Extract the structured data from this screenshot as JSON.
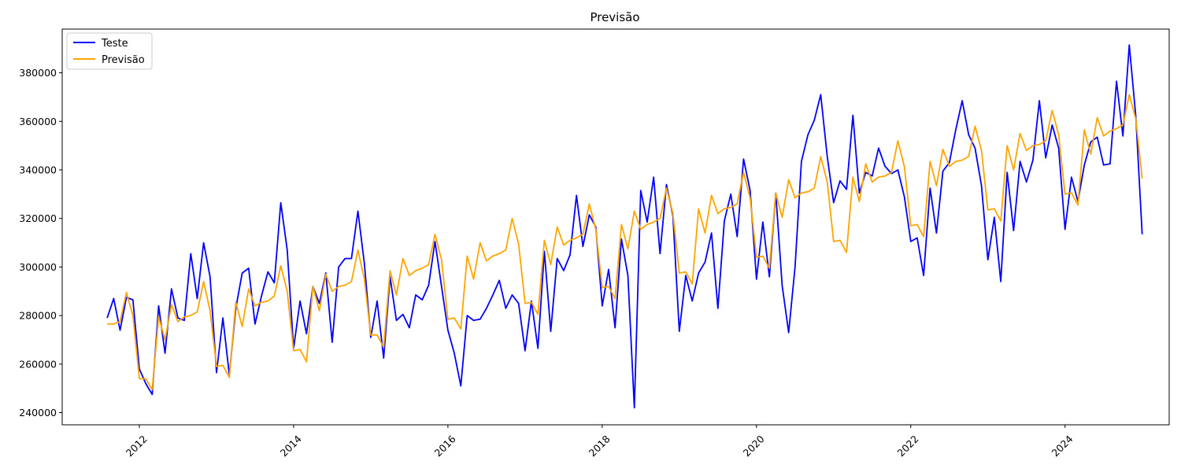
{
  "chart_data": {
    "type": "line",
    "title": "Previsão",
    "xlabel": "",
    "ylabel": "",
    "xlim": [
      2011.0,
      2025.35
    ],
    "ylim": [
      235000,
      398000
    ],
    "x_ticks": [
      2012,
      2014,
      2016,
      2018,
      2020,
      2022,
      2024
    ],
    "x_tick_labels": [
      "2012",
      "2014",
      "2016",
      "2018",
      "2020",
      "2022",
      "2024"
    ],
    "y_ticks": [
      240000,
      260000,
      280000,
      300000,
      320000,
      340000,
      360000,
      380000
    ],
    "y_tick_labels": [
      "240000",
      "260000",
      "280000",
      "300000",
      "320000",
      "340000",
      "360000",
      "380000"
    ],
    "grid": false,
    "legend": {
      "position": "top-left",
      "entries": [
        "Teste",
        "Previsão"
      ]
    },
    "x": [
      2011.583,
      2011.667,
      2011.75,
      2011.833,
      2011.917,
      2012.0,
      2012.083,
      2012.167,
      2012.25,
      2012.333,
      2012.417,
      2012.5,
      2012.583,
      2012.667,
      2012.75,
      2012.833,
      2012.917,
      2013.0,
      2013.083,
      2013.167,
      2013.25,
      2013.333,
      2013.417,
      2013.5,
      2013.583,
      2013.667,
      2013.75,
      2013.833,
      2013.917,
      2014.0,
      2014.083,
      2014.167,
      2014.25,
      2014.333,
      2014.417,
      2014.5,
      2014.583,
      2014.667,
      2014.75,
      2014.833,
      2014.917,
      2015.0,
      2015.083,
      2015.167,
      2015.25,
      2015.333,
      2015.417,
      2015.5,
      2015.583,
      2015.667,
      2015.75,
      2015.833,
      2015.917,
      2016.0,
      2016.083,
      2016.167,
      2016.25,
      2016.333,
      2016.417,
      2016.5,
      2016.583,
      2016.667,
      2016.75,
      2016.833,
      2016.917,
      2017.0,
      2017.083,
      2017.167,
      2017.25,
      2017.333,
      2017.417,
      2017.5,
      2017.583,
      2017.667,
      2017.75,
      2017.833,
      2017.917,
      2018.0,
      2018.083,
      2018.167,
      2018.25,
      2018.333,
      2018.417,
      2018.5,
      2018.583,
      2018.667,
      2018.75,
      2018.833,
      2018.917,
      2019.0,
      2019.083,
      2019.167,
      2019.25,
      2019.333,
      2019.417,
      2019.5,
      2019.583,
      2019.667,
      2019.75,
      2019.833,
      2019.917,
      2020.0,
      2020.083,
      2020.167,
      2020.25,
      2020.333,
      2020.417,
      2020.5,
      2020.583,
      2020.667,
      2020.75,
      2020.833,
      2020.917,
      2021.0,
      2021.083,
      2021.167,
      2021.25,
      2021.333,
      2021.417,
      2021.5,
      2021.583,
      2021.667,
      2021.75,
      2021.833,
      2021.917,
      2022.0,
      2022.083,
      2022.167,
      2022.25,
      2022.333,
      2022.417,
      2022.5,
      2022.583,
      2022.667,
      2022.75,
      2022.833,
      2022.917,
      2023.0,
      2023.083,
      2023.167,
      2023.25,
      2023.333,
      2023.417,
      2023.5,
      2023.583,
      2023.667,
      2023.75,
      2023.833,
      2023.917,
      2024.0,
      2024.083,
      2024.167,
      2024.25,
      2024.333,
      2024.417,
      2024.5,
      2024.583,
      2024.667,
      2024.75,
      2024.833,
      2024.917,
      2025.0
    ],
    "series": [
      {
        "name": "Teste",
        "color": "#0000ff",
        "values": [
          279000,
          287000,
          274000,
          287500,
          286500,
          258000,
          252000,
          247500,
          284000,
          264500,
          291000,
          279000,
          278000,
          305500,
          287000,
          310000,
          296000,
          256500,
          279000,
          255500,
          283000,
          297500,
          299500,
          276500,
          288000,
          298000,
          293500,
          326500,
          307000,
          266500,
          286000,
          272500,
          292000,
          285000,
          297500,
          269000,
          300000,
          303500,
          303500,
          323000,
          301500,
          271000,
          286000,
          262500,
          296000,
          278000,
          280500,
          275000,
          288500,
          286500,
          292500,
          310500,
          292000,
          274000,
          264500,
          251000,
          280000,
          278000,
          278500,
          283000,
          288500,
          294500,
          283000,
          288500,
          285000,
          265500,
          286000,
          266500,
          306500,
          273500,
          303500,
          298500,
          305000,
          329500,
          308500,
          321500,
          316500,
          284000,
          299000,
          275000,
          311500,
          296500,
          242000,
          331500,
          318500,
          337000,
          305500,
          334000,
          321000,
          273500,
          296500,
          286000,
          297500,
          302000,
          314000,
          283000,
          319000,
          330000,
          312500,
          344500,
          331500,
          295000,
          318500,
          296000,
          330500,
          292500,
          273000,
          300000,
          343500,
          354500,
          360500,
          371000,
          345500,
          326500,
          335500,
          332000,
          362500,
          330500,
          339000,
          337500,
          349000,
          341500,
          338500,
          340000,
          329000,
          310500,
          312000,
          296500,
          332500,
          314000,
          339500,
          343000,
          356500,
          368500,
          354500,
          349000,
          333500,
          303000,
          320500,
          294000,
          339000,
          315000,
          343500,
          335000,
          344000,
          368500,
          345000,
          358500,
          349000,
          315500,
          337000,
          327000,
          342000,
          351500,
          353500,
          342000,
          342500,
          376500,
          354000,
          391500,
          362000,
          313500
        ]
      },
      {
        "name": "Previsão",
        "color": "#ffa500",
        "values": [
          276500,
          276500,
          277500,
          289500,
          280000,
          254000,
          254000,
          249500,
          279500,
          270000,
          284500,
          277500,
          279500,
          280000,
          281500,
          294000,
          282000,
          259000,
          259500,
          254500,
          285500,
          275500,
          291000,
          284000,
          285500,
          286000,
          288000,
          300500,
          290000,
          265500,
          266000,
          261000,
          292000,
          282000,
          297000,
          290000,
          292000,
          292500,
          294000,
          307000,
          295000,
          272000,
          272000,
          267000,
          298500,
          288500,
          303500,
          296500,
          298500,
          299500,
          301000,
          313500,
          303000,
          278500,
          279000,
          274500,
          304500,
          295000,
          310000,
          302500,
          304500,
          305500,
          307000,
          320000,
          309500,
          285000,
          285500,
          280500,
          311000,
          301000,
          316500,
          309000,
          311000,
          312000,
          313500,
          326000,
          315500,
          291500,
          292000,
          287000,
          317500,
          307500,
          323000,
          315500,
          317500,
          318500,
          320000,
          332500,
          322000,
          297500,
          298000,
          293000,
          324000,
          314000,
          329500,
          322000,
          324000,
          324500,
          326000,
          339000,
          328500,
          304000,
          304500,
          299500,
          330500,
          320500,
          336000,
          328500,
          330500,
          331000,
          332500,
          345500,
          335000,
          310500,
          311000,
          306000,
          337000,
          327000,
          342500,
          335000,
          337000,
          337500,
          339000,
          352000,
          341500,
          317000,
          317500,
          312500,
          343500,
          333500,
          348500,
          341500,
          343500,
          344000,
          345500,
          358000,
          348000,
          323500,
          324000,
          319000,
          350000,
          340000,
          355000,
          348000,
          350000,
          350500,
          352000,
          364500,
          354500,
          330000,
          330500,
          325500,
          356500,
          346500,
          361500,
          354000,
          356000,
          357000,
          358500,
          371000,
          361000,
          336500
        ]
      }
    ]
  }
}
